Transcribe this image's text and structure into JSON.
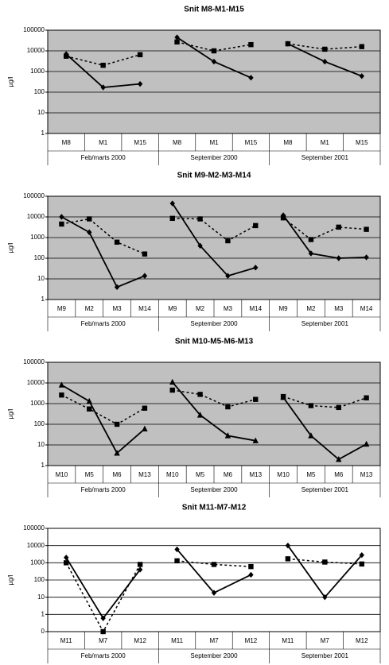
{
  "chart_data": [
    {
      "type": "line",
      "title": "Snit M8-M1-M15",
      "y_label": "µg/l",
      "categories": [
        "M8",
        "M1",
        "M15",
        "M8",
        "M1",
        "M15",
        "M8",
        "M1",
        "M15"
      ],
      "groups": [
        "Feb/marts 2000",
        "September 2000",
        "September 2001"
      ],
      "series": [
        {
          "color": "#000000",
          "dash": "none",
          "marker": "diamond",
          "values": [
            7000,
            170,
            250,
            45000,
            3000,
            500,
            22000,
            3000,
            600
          ]
        },
        {
          "color": "#000000",
          "dash": "3,3",
          "marker": "square",
          "values": [
            5500,
            2000,
            6500,
            27000,
            10000,
            20000,
            22000,
            12000,
            16000
          ]
        }
      ],
      "ylim": [
        1,
        100000
      ],
      "yticks": [
        1,
        10,
        100,
        1000,
        10000,
        100000
      ],
      "log_scale": true,
      "grid": true,
      "background": "#c0c0c0"
    },
    {
      "type": "line",
      "title": "Snit M9-M2-M3-M14",
      "y_label": "µg/l",
      "categories": [
        "M9",
        "M2",
        "M3",
        "M14",
        "M9",
        "M2",
        "M3",
        "M14",
        "M9",
        "M2",
        "M3",
        "M14"
      ],
      "groups": [
        "Feb/marts 2000",
        "September 2000",
        "September 2001"
      ],
      "series": [
        {
          "color": "#000000",
          "dash": "none",
          "marker": "diamond",
          "values": [
            10000,
            1800,
            4,
            14,
            45000,
            400,
            14,
            35,
            12000,
            170,
            100,
            110
          ]
        },
        {
          "color": "#000000",
          "dash": "3,3",
          "marker": "square",
          "values": [
            4500,
            8000,
            600,
            160,
            8500,
            8000,
            700,
            3800,
            9000,
            800,
            3200,
            2500
          ]
        }
      ],
      "ylim": [
        1,
        100000
      ],
      "yticks": [
        1,
        10,
        100,
        1000,
        10000,
        100000
      ],
      "log_scale": true,
      "grid": true,
      "background": "#c0c0c0"
    },
    {
      "type": "line",
      "title": "Snit M10-M5-M6-M13",
      "y_label": "µg/l",
      "categories": [
        "M10",
        "M5",
        "M6",
        "M13",
        "M10",
        "M5",
        "M6",
        "M13",
        "M10",
        "M5",
        "M6",
        "M13"
      ],
      "groups": [
        "Feb/marts 2000",
        "September 2000",
        "September 2001"
      ],
      "series": [
        {
          "color": "#000000",
          "dash": "none",
          "marker": "triangle",
          "values": [
            8000,
            1300,
            4,
            60,
            11000,
            280,
            28,
            16,
            2000,
            28,
            2,
            11
          ]
        },
        {
          "color": "#000000",
          "dash": "3,3",
          "marker": "square",
          "values": [
            2600,
            550,
            100,
            600,
            4500,
            2800,
            700,
            1600,
            2200,
            800,
            650,
            1900
          ]
        }
      ],
      "ylim": [
        1,
        100000
      ],
      "yticks": [
        1,
        10,
        100,
        1000,
        10000,
        100000
      ],
      "log_scale": true,
      "grid": true,
      "background": "#c0c0c0"
    },
    {
      "type": "line",
      "title": "Snit M11-M7-M12",
      "y_label": "µg/l",
      "categories": [
        "M11",
        "M7",
        "M12",
        "M11",
        "M7",
        "M12",
        "M11",
        "M7",
        "M12"
      ],
      "groups": [
        "Feb/marts 2000",
        "September 2000",
        "September 2001"
      ],
      "series": [
        {
          "color": "#000000",
          "dash": "none",
          "marker": "diamond",
          "values": [
            2000,
            0.6,
            400,
            6000,
            18,
            200,
            10000,
            10,
            2800
          ]
        },
        {
          "color": "#000000",
          "dash": "3,3",
          "marker": "square",
          "values": [
            1000,
            0.1,
            800,
            1300,
            800,
            600,
            1700,
            1100,
            850
          ]
        }
      ],
      "ylim": [
        0.1,
        100000
      ],
      "yticks": [
        {
          "value": 0.1,
          "label": "0"
        },
        1,
        10,
        100,
        1000,
        10000,
        100000
      ],
      "log_scale": true,
      "grid": true,
      "background": "#ffffff"
    }
  ]
}
